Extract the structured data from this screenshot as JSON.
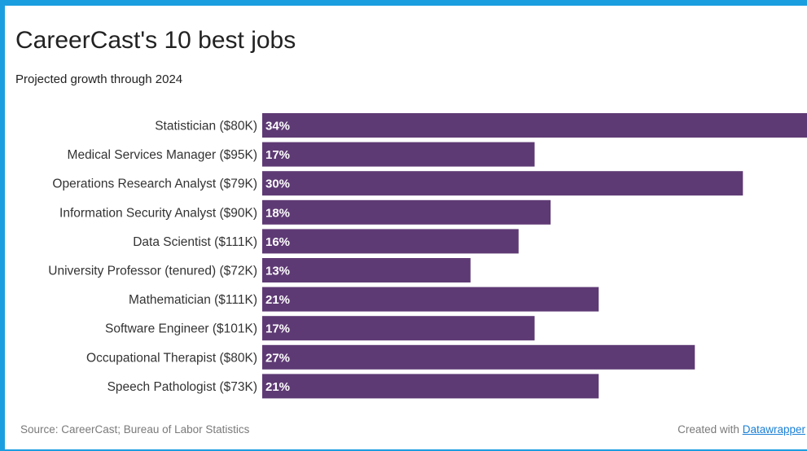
{
  "page": {
    "border_color": "#1b9ee0",
    "background": "#ffffff"
  },
  "chart_data": {
    "type": "bar",
    "orientation": "horizontal",
    "title": "CareerCast's 10 best jobs",
    "subtitle": "Projected growth through 2024",
    "categories": [
      "Statistician ($80K)",
      "Medical Services Manager ($95K)",
      "Operations Research Analyst ($79K)",
      "Information Security Analyst ($90K)",
      "Data Scientist ($111K)",
      "University Professor (tenured) ($72K)",
      "Mathematician ($111K)",
      "Software Engineer ($101K)",
      "Occupational Therapist ($80K)",
      "Speech Pathologist ($73K)"
    ],
    "values": [
      34,
      17,
      30,
      18,
      16,
      13,
      21,
      17,
      27,
      21
    ],
    "value_labels": [
      "34%",
      "17%",
      "30%",
      "18%",
      "16%",
      "13%",
      "21%",
      "17%",
      "27%",
      "21%"
    ],
    "unit": "%",
    "xlim": [
      0,
      34
    ],
    "bar_color": "#5e3a74",
    "grid": false,
    "legend": "none"
  },
  "footer": {
    "source": "Source: CareerCast; Bureau of Labor Statistics",
    "credit_prefix": "Created with ",
    "credit_link": "Datawrapper"
  }
}
